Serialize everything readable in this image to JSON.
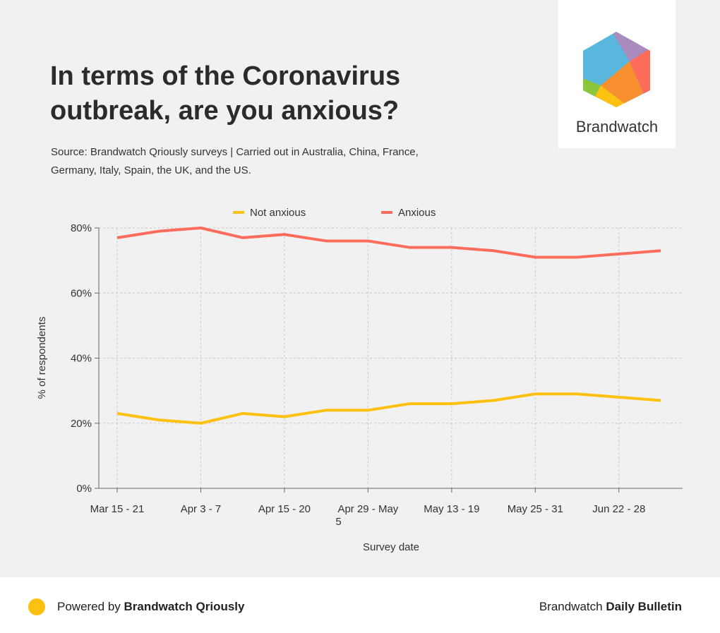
{
  "title": "In terms of the Coronavirus outbreak, are you anxious?",
  "subtitle": "Source: Brandwatch Qriously surveys | Carried out in Australia, China, France, Germany, Italy, Spain, the UK, and the US.",
  "logo": {
    "text": "Brandwatch"
  },
  "footer": {
    "powered_prefix": "Powered by ",
    "powered_brand": "Brandwatch Qriously",
    "bulletin_prefix": "Brandwatch ",
    "bulletin_bold": "Daily Bulletin",
    "dot_color": "#fcc111"
  },
  "chart_data": {
    "type": "line",
    "xlabel": "Survey date",
    "ylabel": "% of respondents",
    "ylim": [
      0,
      80
    ],
    "yticks": [
      "0%",
      "20%",
      "40%",
      "60%",
      "80%"
    ],
    "ytick_values": [
      0,
      20,
      40,
      60,
      80
    ],
    "categories": [
      "Mar 15 - 21",
      "",
      "Apr 3 - 7",
      "",
      "Apr 15 - 20",
      "",
      "Apr 29 - May 5",
      "",
      "May 13 - 19",
      "",
      "May 25 - 31",
      "",
      "Jun 22 - 28",
      ""
    ],
    "grid": true,
    "legend": "top",
    "series": [
      {
        "name": "Not anxious",
        "color": "#fcc111",
        "values": [
          23,
          21,
          20,
          23,
          22,
          24,
          24,
          26,
          26,
          27,
          29,
          29,
          28,
          27
        ]
      },
      {
        "name": "Anxious",
        "color": "#fe6d5b",
        "values": [
          77,
          79,
          80,
          77,
          78,
          76,
          76,
          74,
          74,
          73,
          71,
          71,
          72,
          73
        ]
      }
    ]
  }
}
